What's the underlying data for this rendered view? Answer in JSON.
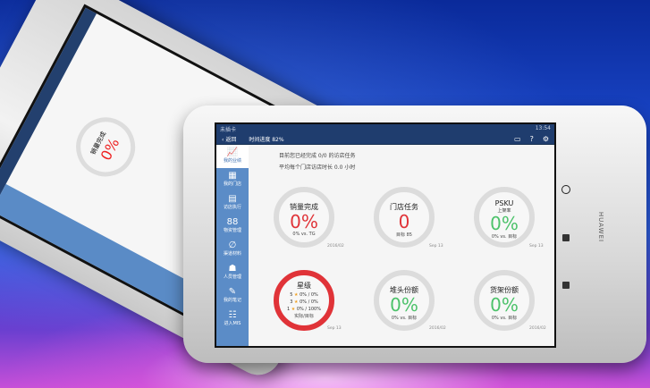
{
  "status_bar": {
    "carrier": "未插卡",
    "time": "13:54"
  },
  "header": {
    "back": "返回",
    "progress": "时间进度 82%",
    "icons": [
      "message-icon",
      "help-icon",
      "settings-icon"
    ]
  },
  "brand": "HUAWEI",
  "sidebar": {
    "items": [
      {
        "label": "我的业绩",
        "icon": "chart-icon",
        "active": true
      },
      {
        "label": "我的门店",
        "icon": "store-icon"
      },
      {
        "label": "访店执行",
        "icon": "clipboard-icon"
      },
      {
        "label": "物资管理",
        "icon": "grid-icon"
      },
      {
        "label": "渠道材料",
        "icon": "paperclip-icon"
      },
      {
        "label": "人员管理",
        "icon": "people-icon"
      },
      {
        "label": "我的笔记",
        "icon": "note-icon"
      },
      {
        "label": "进入MIS",
        "icon": "list-icon"
      }
    ]
  },
  "summary": {
    "line1": "目前您已经完成 0/0 的访店任务",
    "line2": "平均每个门店访店时长 0.0 小时"
  },
  "cards": [
    {
      "title": "销量完成",
      "value": "0%",
      "sub": "0% vs. TG",
      "date": "2016/02",
      "color": "#e03338"
    },
    {
      "title": "门店任务",
      "value": "0",
      "sub": "目标 85",
      "date": "Sep 13",
      "color": "#e03338"
    },
    {
      "title": "PSKU",
      "subtitle": "上架率",
      "value": "0%",
      "sub": "0% vs. 目标",
      "date": "Sep 13",
      "color": "#4cc26a"
    },
    {
      "title": "星级",
      "stars": [
        {
          "n": "5",
          "v": "0% / 0%"
        },
        {
          "n": "3",
          "v": "0% / 0%"
        },
        {
          "n": "1",
          "v": "0% / 100%"
        }
      ],
      "sub": "实际/目标",
      "date": "Sep 13"
    },
    {
      "title": "堆头份额",
      "value": "0%",
      "sub": "0% vs. 目标",
      "date": "2016/02",
      "color": "#4cc26a"
    },
    {
      "title": "货架份额",
      "value": "0%",
      "sub": "0% vs. 目标",
      "date": "2016/02",
      "color": "#4cc26a"
    }
  ]
}
